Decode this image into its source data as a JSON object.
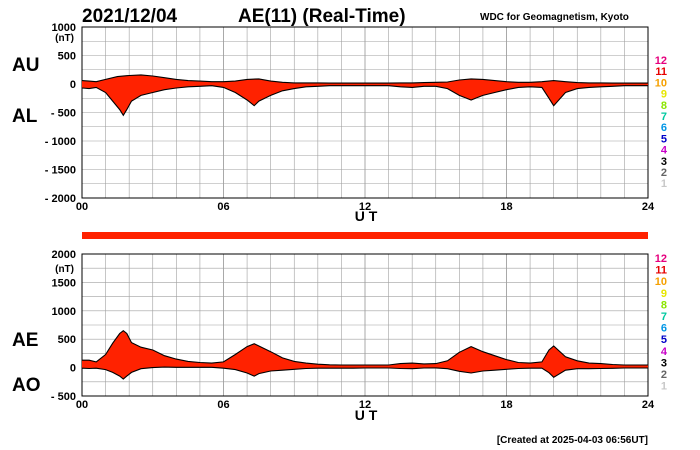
{
  "header": {
    "date": "2021/12/04",
    "title": "AE(11) (Real-Time)",
    "source": "WDC for Geomagnetism, Kyoto"
  },
  "footer": {
    "created": "[Created at 2025-04-03 06:56UT]"
  },
  "side_labels": {
    "top_upper": "AU",
    "top_lower": "AL",
    "bottom_upper": "AE",
    "bottom_lower": "AO"
  },
  "station_scale": {
    "labels": [
      "12",
      "11",
      "10",
      "9",
      "8",
      "7",
      "6",
      "5",
      "4",
      "3",
      "2",
      "1"
    ],
    "colors": [
      "#e6007e",
      "#e60000",
      "#f5a000",
      "#e6e600",
      "#8ce600",
      "#00c8a0",
      "#0096e6",
      "#0000c8",
      "#c800c8",
      "#000000",
      "#646464",
      "#c8c8c8"
    ]
  },
  "colors": {
    "fill": "#ff2200",
    "outline": "#000000",
    "bar": "#ff2200",
    "grid": "#a0a0a0"
  },
  "chart_data": [
    {
      "name": "AU/AL",
      "type": "area",
      "unit_label": "(nT)",
      "xlabel": "U T",
      "xlim": [
        0,
        24
      ],
      "ylim": [
        -2000,
        1000
      ],
      "yticks": [
        1000,
        500,
        0,
        -500,
        -1000,
        -1500,
        -2000
      ],
      "xticks": [
        "00",
        "06",
        "12",
        "18",
        "24"
      ],
      "grid": true,
      "series": [
        {
          "key": "AU",
          "x": [
            0,
            0.3,
            0.6,
            1,
            1.5,
            2,
            2.5,
            3,
            3.5,
            4,
            4.5,
            5,
            5.5,
            6,
            6.5,
            7,
            7.5,
            8,
            8.5,
            9,
            9.5,
            10,
            10.5,
            11,
            11.5,
            12,
            12.5,
            13,
            13.5,
            14,
            14.5,
            15,
            15.5,
            16,
            16.5,
            17,
            17.5,
            18,
            18.5,
            19,
            19.5,
            20,
            20.5,
            21,
            21.5,
            22,
            22.5,
            23,
            23.5,
            24
          ],
          "values": [
            60,
            50,
            40,
            80,
            130,
            150,
            160,
            140,
            110,
            80,
            60,
            50,
            40,
            40,
            50,
            80,
            90,
            50,
            30,
            20,
            20,
            20,
            15,
            15,
            15,
            15,
            15,
            15,
            20,
            20,
            25,
            30,
            35,
            70,
            90,
            80,
            60,
            40,
            30,
            30,
            40,
            60,
            40,
            25,
            20,
            20,
            15,
            15,
            15,
            15
          ]
        },
        {
          "key": "AL",
          "x": [
            0,
            0.3,
            0.6,
            1,
            1.3,
            1.6,
            1.75,
            1.9,
            2.1,
            2.5,
            3,
            3.5,
            4,
            4.5,
            5,
            5.5,
            6,
            6.5,
            7,
            7.3,
            7.5,
            8,
            8.5,
            9,
            9.5,
            10,
            10.5,
            11,
            11.5,
            12,
            12.5,
            13,
            13.5,
            14,
            14.5,
            15,
            15.5,
            16,
            16.5,
            17,
            17.5,
            18,
            18.5,
            19,
            19.5,
            19.8,
            20,
            20.5,
            21,
            21.5,
            22,
            22.5,
            23,
            23.5,
            24
          ],
          "values": [
            -70,
            -80,
            -60,
            -150,
            -300,
            -450,
            -550,
            -450,
            -300,
            -200,
            -150,
            -100,
            -70,
            -50,
            -40,
            -30,
            -60,
            -150,
            -280,
            -380,
            -300,
            -200,
            -120,
            -80,
            -50,
            -40,
            -30,
            -30,
            -30,
            -30,
            -30,
            -30,
            -50,
            -60,
            -40,
            -40,
            -80,
            -200,
            -280,
            -200,
            -150,
            -100,
            -60,
            -50,
            -60,
            -250,
            -380,
            -150,
            -80,
            -60,
            -50,
            -40,
            -30,
            -30,
            -30
          ]
        }
      ]
    },
    {
      "name": "AE/AO",
      "type": "area",
      "unit_label": "(nT)",
      "xlabel": "U T",
      "xlim": [
        0,
        24
      ],
      "ylim": [
        -500,
        2000
      ],
      "yticks": [
        2000,
        1500,
        1000,
        500,
        0,
        -500
      ],
      "xticks": [
        "00",
        "06",
        "12",
        "18",
        "24"
      ],
      "grid": true,
      "series": [
        {
          "key": "AE",
          "x": [
            0,
            0.3,
            0.6,
            1,
            1.3,
            1.6,
            1.75,
            1.9,
            2.1,
            2.5,
            3,
            3.5,
            4,
            4.5,
            5,
            5.5,
            6,
            6.5,
            7,
            7.3,
            7.5,
            8,
            8.5,
            9,
            9.5,
            10,
            10.5,
            11,
            11.5,
            12,
            12.5,
            13,
            13.5,
            14,
            14.5,
            15,
            15.5,
            16,
            16.5,
            17,
            17.5,
            18,
            18.5,
            19,
            19.5,
            19.8,
            20,
            20.5,
            21,
            21.5,
            22,
            22.5,
            23,
            23.5,
            24
          ],
          "values": [
            130,
            130,
            100,
            230,
            430,
            600,
            650,
            600,
            440,
            360,
            310,
            210,
            150,
            110,
            90,
            80,
            100,
            230,
            370,
            420,
            380,
            280,
            170,
            110,
            80,
            60,
            50,
            45,
            45,
            45,
            45,
            45,
            70,
            80,
            65,
            70,
            120,
            270,
            370,
            280,
            210,
            140,
            90,
            80,
            100,
            310,
            380,
            190,
            120,
            80,
            70,
            55,
            45,
            45,
            45
          ]
        },
        {
          "key": "AO",
          "x": [
            0,
            0.3,
            0.6,
            1,
            1.3,
            1.6,
            1.75,
            1.9,
            2.1,
            2.5,
            3,
            3.5,
            4,
            4.5,
            5,
            5.5,
            6,
            6.5,
            7,
            7.3,
            7.5,
            8,
            8.5,
            9,
            9.5,
            10,
            10.5,
            11,
            11.5,
            12,
            12.5,
            13,
            13.5,
            14,
            14.5,
            15,
            15.5,
            16,
            16.5,
            17,
            17.5,
            18,
            18.5,
            19,
            19.5,
            19.8,
            20,
            20.5,
            21,
            21.5,
            22,
            22.5,
            23,
            23.5,
            24
          ],
          "values": [
            -10,
            -15,
            -10,
            -35,
            -85,
            -150,
            -200,
            -150,
            -85,
            -20,
            0,
            10,
            5,
            5,
            5,
            5,
            -10,
            -35,
            -95,
            -150,
            -105,
            -60,
            -45,
            -30,
            -15,
            -10,
            -10,
            -10,
            -10,
            -7,
            -7,
            -7,
            -15,
            -20,
            -7,
            -5,
            -20,
            -65,
            -95,
            -60,
            -45,
            -30,
            -15,
            -10,
            -10,
            -90,
            -170,
            -45,
            -20,
            -20,
            -15,
            -12,
            -7,
            -7,
            -7
          ]
        }
      ]
    }
  ]
}
